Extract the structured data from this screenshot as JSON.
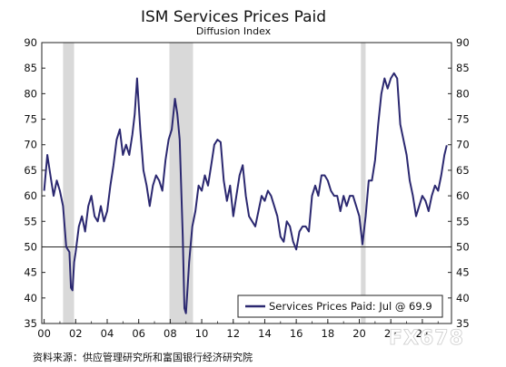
{
  "chart_data": {
    "type": "line",
    "title": "ISM Services Prices Paid",
    "subtitle": "Diffusion Index",
    "ylim": [
      35,
      90
    ],
    "y_ticks": [
      "90",
      "85",
      "80",
      "75",
      "70",
      "65",
      "60",
      "55",
      "50",
      "45",
      "40",
      "35"
    ],
    "x_ticks": [
      "00",
      "02",
      "04",
      "06",
      "08",
      "10",
      "12",
      "14",
      "16",
      "18",
      "20",
      "22",
      "24"
    ],
    "reference_line": 50,
    "recessions": [
      [
        2001.2,
        2001.9
      ],
      [
        2007.95,
        2009.45
      ],
      [
        2020.1,
        2020.4
      ]
    ],
    "series": [
      {
        "name": "Services Prices Paid",
        "color": "#2b2870",
        "x": [
          2000.0,
          2000.2,
          2000.4,
          2000.6,
          2000.8,
          2001.0,
          2001.2,
          2001.4,
          2001.6,
          2001.7,
          2001.8,
          2001.9,
          2002.0,
          2002.2,
          2002.4,
          2002.6,
          2002.8,
          2003.0,
          2003.2,
          2003.4,
          2003.6,
          2003.8,
          2004.0,
          2004.2,
          2004.4,
          2004.6,
          2004.8,
          2005.0,
          2005.2,
          2005.4,
          2005.6,
          2005.75,
          2005.9,
          2006.1,
          2006.3,
          2006.5,
          2006.7,
          2006.9,
          2007.1,
          2007.3,
          2007.5,
          2007.7,
          2007.9,
          2008.1,
          2008.3,
          2008.45,
          2008.6,
          2008.8,
          2008.9,
          2009.0,
          2009.1,
          2009.2,
          2009.4,
          2009.6,
          2009.8,
          2010.0,
          2010.2,
          2010.4,
          2010.6,
          2010.8,
          2011.0,
          2011.2,
          2011.4,
          2011.6,
          2011.8,
          2012.0,
          2012.2,
          2012.4,
          2012.6,
          2012.8,
          2013.0,
          2013.2,
          2013.4,
          2013.6,
          2013.8,
          2014.0,
          2014.2,
          2014.4,
          2014.6,
          2014.8,
          2015.0,
          2015.2,
          2015.4,
          2015.6,
          2015.8,
          2016.0,
          2016.2,
          2016.4,
          2016.6,
          2016.8,
          2017.0,
          2017.2,
          2017.4,
          2017.6,
          2017.8,
          2018.0,
          2018.2,
          2018.4,
          2018.6,
          2018.8,
          2019.0,
          2019.2,
          2019.4,
          2019.6,
          2019.8,
          2020.0,
          2020.2,
          2020.4,
          2020.6,
          2020.8,
          2021.0,
          2021.2,
          2021.4,
          2021.6,
          2021.8,
          2022.0,
          2022.2,
          2022.4,
          2022.6,
          2022.8,
          2023.0,
          2023.2,
          2023.4,
          2023.6,
          2023.8,
          2024.0,
          2024.2,
          2024.4,
          2024.6,
          2024.8,
          2025.0,
          2025.2,
          2025.4,
          2025.55
        ],
        "values": [
          61.0,
          68.0,
          64.0,
          60.0,
          63.0,
          61.0,
          58.0,
          50.0,
          49.0,
          42.0,
          41.5,
          47.0,
          49.0,
          54.0,
          56.0,
          53.0,
          58.0,
          60.0,
          56.0,
          55.0,
          58.0,
          55.0,
          57.0,
          62.0,
          66.0,
          71.0,
          73.0,
          68.0,
          70.0,
          68.0,
          72.0,
          76.0,
          83.0,
          73.0,
          65.0,
          62.0,
          58.0,
          62.0,
          64.0,
          63.0,
          61.0,
          67.0,
          71.0,
          73.0,
          79.0,
          76.0,
          71.0,
          52.0,
          38.0,
          37.0,
          42.0,
          47.0,
          54.0,
          57.0,
          62.0,
          61.0,
          64.0,
          62.0,
          66.0,
          70.0,
          71.0,
          70.5,
          63.0,
          59.0,
          62.0,
          56.0,
          60.0,
          64.0,
          66.0,
          60.0,
          56.0,
          55.0,
          54.0,
          57.0,
          60.0,
          59.0,
          61.0,
          60.0,
          58.0,
          56.0,
          52.0,
          51.0,
          55.0,
          54.0,
          51.0,
          49.5,
          53.0,
          54.0,
          54.0,
          53.0,
          60.0,
          62.0,
          60.0,
          64.0,
          64.0,
          63.0,
          61.0,
          60.0,
          60.0,
          57.0,
          60.0,
          58.0,
          60.0,
          60.0,
          58.0,
          56.0,
          50.5,
          56.0,
          63.0,
          63.0,
          67.0,
          74.0,
          80.0,
          83.0,
          81.0,
          83.0,
          84.0,
          83.0,
          74.0,
          71.0,
          68.0,
          63.0,
          60.0,
          56.0,
          58.0,
          60.0,
          59.0,
          57.0,
          60.0,
          62.0,
          61.0,
          64.0,
          68.0,
          69.9
        ]
      }
    ],
    "legend_label": "Services Prices Paid: Jul @ 69.9"
  },
  "source_note": "资料来源：供应管理研究所和富国银行经济研究院",
  "watermark": "FX678"
}
